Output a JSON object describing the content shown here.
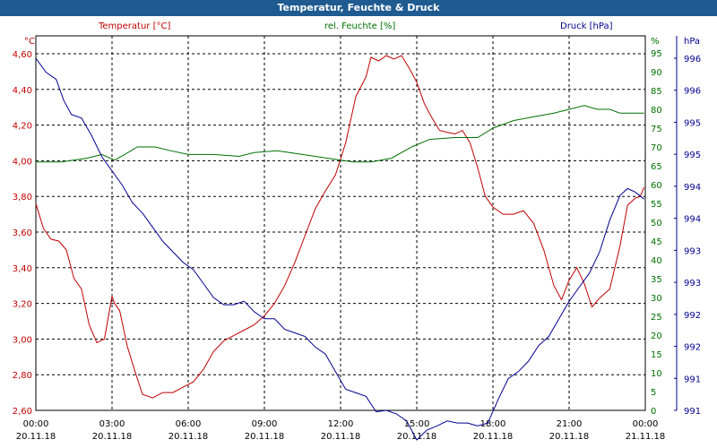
{
  "title": "Temperatur, Feuchte & Druck",
  "colors": {
    "temperature": "#c00000",
    "humidity": "#007000",
    "pressure": "#000090",
    "titlebar": "#1f5b91",
    "grid": "#000000"
  },
  "chart_data": {
    "type": "line",
    "title": "Temperatur, Feuchte & Druck",
    "grid": true,
    "x_ticks": [
      {
        "time": "00:00",
        "date": "20.11.18"
      },
      {
        "time": "03:00",
        "date": "20.11.18"
      },
      {
        "time": "06:00",
        "date": "20.11.18"
      },
      {
        "time": "09:00",
        "date": "20.11.18"
      },
      {
        "time": "12:00",
        "date": "20.11.18"
      },
      {
        "time": "15:00",
        "date": "20.11.18"
      },
      {
        "time": "18:00",
        "date": "20.11.18"
      },
      {
        "time": "21:00",
        "date": "20.11.18"
      },
      {
        "time": "00:00",
        "date": "21.11.18"
      }
    ],
    "x_range_hours": [
      0,
      24
    ],
    "axes": {
      "left": {
        "unit": "°C",
        "min": 2.6,
        "max": 4.6,
        "ticks": [
          "2,60",
          "2,80",
          "3,00",
          "3,20",
          "3,40",
          "3,60",
          "3,80",
          "4,00",
          "4,20",
          "4,40",
          "4,60"
        ]
      },
      "right1": {
        "unit": "%",
        "min": 0,
        "max": 95,
        "ticks": [
          "0",
          "5",
          "10",
          "15",
          "20",
          "25",
          "30",
          "35",
          "40",
          "45",
          "50",
          "55",
          "60",
          "65",
          "70",
          "75",
          "80",
          "85",
          "90",
          "95"
        ]
      },
      "right2": {
        "unit": "hPa",
        "min": 991,
        "max": 996,
        "ticks": [
          "991",
          "991",
          "992",
          "992",
          "993",
          "993",
          "994",
          "994",
          "995",
          "995",
          "996",
          "996"
        ]
      }
    },
    "series": [
      {
        "name": "Temperatur [°C]",
        "axis": "left",
        "x": [
          0,
          0.3,
          0.6,
          0.9,
          1.2,
          1.5,
          1.8,
          2.1,
          2.4,
          2.7,
          3.0,
          3.1,
          3.3,
          3.6,
          3.9,
          4.2,
          4.6,
          5.0,
          5.4,
          5.8,
          6.2,
          6.6,
          7.0,
          7.4,
          7.8,
          8.2,
          8.6,
          9.0,
          9.4,
          9.8,
          10.2,
          10.6,
          11.0,
          11.4,
          11.8,
          12.2,
          12.6,
          13.0,
          13.2,
          13.5,
          13.8,
          14.1,
          14.4,
          14.7,
          15.0,
          15.3,
          15.6,
          15.9,
          16.2,
          16.5,
          16.8,
          17.1,
          17.4,
          17.7,
          18.0,
          18.4,
          18.8,
          19.2,
          19.6,
          20.0,
          20.4,
          20.7,
          21.0,
          21.3,
          21.6,
          21.9,
          22.2,
          22.6,
          23.0,
          23.3,
          23.6,
          23.8,
          23.95
        ],
        "y": [
          3.76,
          3.62,
          3.56,
          3.55,
          3.5,
          3.34,
          3.28,
          3.08,
          2.98,
          3.0,
          3.24,
          3.2,
          3.16,
          2.96,
          2.82,
          2.69,
          2.67,
          2.7,
          2.7,
          2.73,
          2.76,
          2.83,
          2.93,
          2.99,
          3.02,
          3.05,
          3.08,
          3.13,
          3.2,
          3.3,
          3.43,
          3.58,
          3.73,
          3.83,
          3.92,
          4.1,
          4.36,
          4.47,
          4.58,
          4.56,
          4.59,
          4.57,
          4.59,
          4.52,
          4.44,
          4.32,
          4.24,
          4.17,
          4.16,
          4.15,
          4.17,
          4.1,
          3.96,
          3.8,
          3.74,
          3.7,
          3.7,
          3.72,
          3.65,
          3.5,
          3.3,
          3.22,
          3.33,
          3.4,
          3.31,
          3.18,
          3.23,
          3.28,
          3.52,
          3.75,
          3.79,
          3.8,
          3.85
        ]
      },
      {
        "name": "rel. Feuchte [%]",
        "axis": "right1",
        "x": [
          0,
          1.0,
          2.0,
          2.6,
          3.1,
          3.5,
          4.0,
          4.7,
          5.3,
          6.0,
          7.0,
          8.0,
          8.6,
          9.5,
          10.5,
          11.5,
          12.5,
          13.2,
          14.0,
          14.8,
          15.5,
          16.5,
          17.4,
          18.0,
          18.8,
          19.6,
          20.4,
          21.0,
          21.6,
          22.1,
          22.6,
          23.0,
          23.5,
          23.95
        ],
        "y": [
          66,
          66,
          67,
          68,
          66.5,
          68,
          70,
          70,
          69,
          68,
          68,
          67.5,
          68.5,
          69,
          68,
          67,
          66,
          66,
          67,
          70,
          72,
          72.5,
          72.5,
          75,
          77,
          78,
          79,
          80,
          81,
          80,
          80,
          79,
          79,
          79
        ]
      },
      {
        "name": "Druck [hPa]",
        "axis": "right2",
        "x": [
          0,
          0.4,
          0.8,
          1.1,
          1.4,
          1.8,
          2.2,
          2.6,
          3.0,
          3.4,
          3.8,
          4.2,
          4.6,
          5.0,
          5.4,
          5.8,
          6.2,
          6.6,
          7.0,
          7.4,
          7.8,
          8.2,
          8.6,
          9.0,
          9.4,
          9.8,
          10.2,
          10.6,
          11.0,
          11.4,
          11.8,
          12.2,
          12.6,
          13.0,
          13.4,
          13.8,
          14.2,
          14.6,
          15.0,
          15.4,
          15.8,
          16.2,
          16.6,
          17.0,
          17.4,
          17.8,
          18.2,
          18.6,
          19.0,
          19.4,
          19.8,
          20.2,
          20.6,
          21.0,
          21.4,
          21.8,
          22.2,
          22.6,
          23.0,
          23.3,
          23.6,
          23.95
        ],
        "y": [
          996.0,
          995.8,
          995.7,
          995.4,
          995.2,
          995.15,
          994.9,
          994.6,
          994.4,
          994.2,
          993.95,
          993.8,
          993.6,
          993.4,
          993.25,
          993.1,
          993.0,
          992.8,
          992.6,
          992.5,
          992.5,
          992.55,
          992.4,
          992.3,
          992.3,
          992.15,
          992.1,
          992.05,
          991.9,
          991.8,
          991.55,
          991.3,
          991.25,
          991.2,
          990.98,
          991.0,
          990.95,
          990.85,
          990.58,
          990.72,
          990.78,
          990.85,
          990.82,
          990.82,
          990.78,
          990.82,
          991.15,
          991.45,
          991.55,
          991.7,
          991.92,
          992.05,
          992.3,
          992.55,
          992.75,
          992.95,
          993.25,
          993.7,
          994.05,
          994.15,
          994.1,
          994.0
        ]
      }
    ]
  }
}
